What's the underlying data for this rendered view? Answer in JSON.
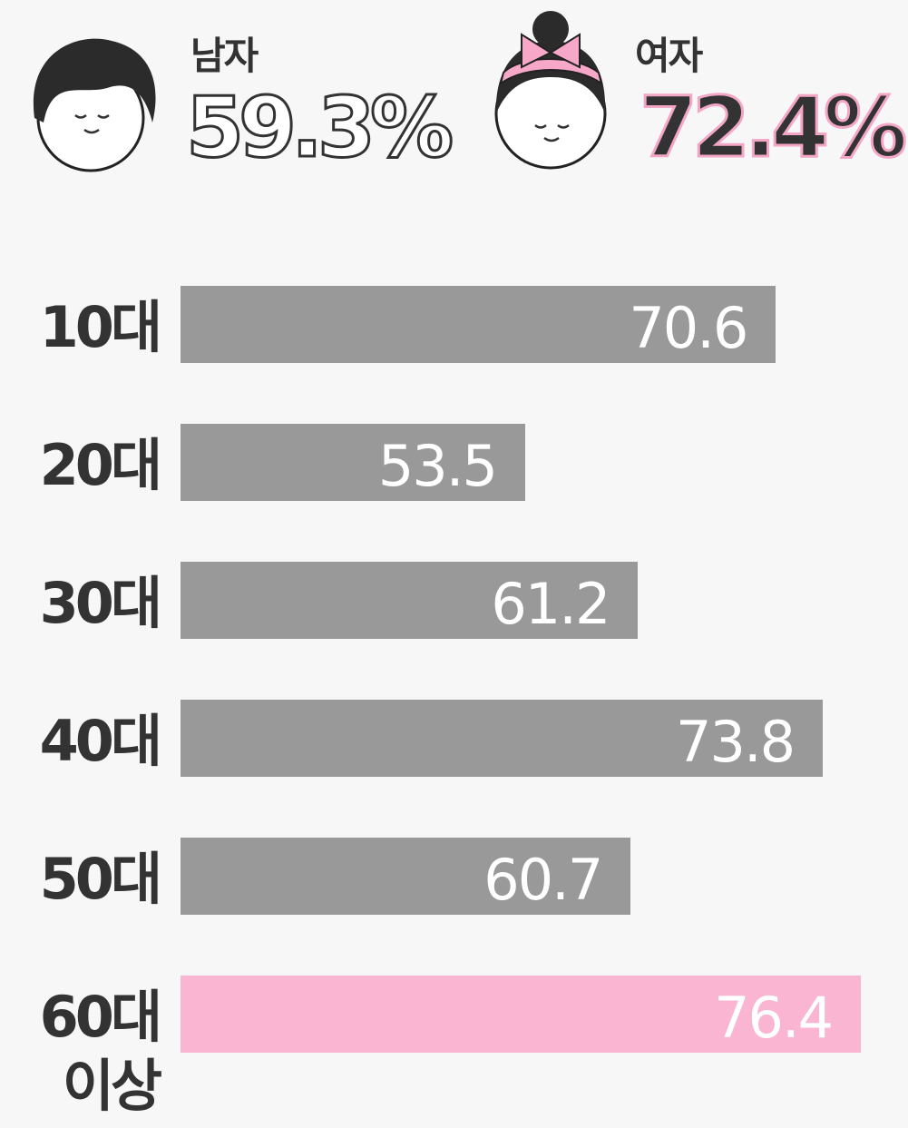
{
  "summary": {
    "male": {
      "label": "남자",
      "value": "59.3%"
    },
    "female": {
      "label": "여자",
      "value": "72.4%"
    }
  },
  "chart_data": {
    "type": "bar",
    "orientation": "horizontal",
    "categories": [
      "10대",
      "20대",
      "30대",
      "40대",
      "50대",
      "60대 이상"
    ],
    "values": [
      70.6,
      53.5,
      61.2,
      73.8,
      60.7,
      76.4
    ],
    "colors": [
      "#999999",
      "#999999",
      "#999999",
      "#999999",
      "#999999",
      "#f9b5d1"
    ],
    "xlim": [
      30,
      78
    ]
  }
}
